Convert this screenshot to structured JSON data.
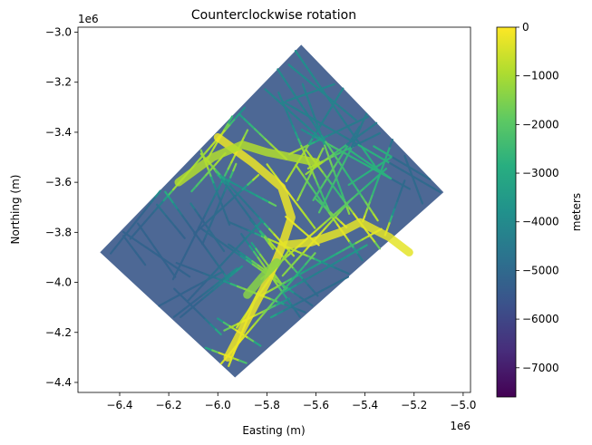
{
  "chart_data": {
    "type": "scatter",
    "title": "Counterclockwise rotation",
    "xlabel": "Easting (m)",
    "ylabel": "Northing (m)",
    "x_offset_label": "1e6",
    "y_offset_label": "1e6",
    "xlim": [
      -6.57,
      -4.97
    ],
    "ylim": [
      -4.44,
      -2.98
    ],
    "x_ticks": [
      -6.4,
      -6.2,
      -6.0,
      -5.8,
      -5.6,
      -5.4,
      -5.2,
      -5.0
    ],
    "x_tick_labels": [
      "−6.4",
      "−6.2",
      "−6.0",
      "−5.8",
      "−5.6",
      "−5.4",
      "−5.2",
      "−5.0"
    ],
    "y_ticks": [
      -3.0,
      -3.2,
      -3.4,
      -3.6,
      -3.8,
      -4.0,
      -4.2,
      -4.4
    ],
    "y_tick_labels": [
      "−3.0",
      "−3.2",
      "−3.4",
      "−3.6",
      "−3.8",
      "−4.0",
      "−4.2",
      "−4.4"
    ],
    "grid": false,
    "colormap": "viridis",
    "survey_polygon": [
      [
        -6.48,
        -3.88
      ],
      [
        -5.66,
        -3.05
      ],
      [
        -5.08,
        -3.64
      ],
      [
        -5.93,
        -4.38
      ]
    ],
    "colorbar": {
      "label": "meters",
      "range": [
        -7600,
        0
      ],
      "ticks": [
        0,
        -1000,
        -2000,
        -3000,
        -4000,
        -5000,
        -6000,
        -7000
      ],
      "tick_labels": [
        "0",
        "−1000",
        "−2000",
        "−3000",
        "−4000",
        "−5000",
        "−6000",
        "−7000"
      ]
    },
    "ridges": [
      {
        "value": -200,
        "points": [
          [
            -6.0,
            -3.42
          ],
          [
            -5.86,
            -3.52
          ],
          [
            -5.74,
            -3.62
          ],
          [
            -5.7,
            -3.74
          ],
          [
            -5.74,
            -3.86
          ],
          [
            -5.8,
            -4.0
          ],
          [
            -5.88,
            -4.15
          ],
          [
            -5.96,
            -4.3
          ]
        ]
      },
      {
        "value": -300,
        "points": [
          [
            -5.72,
            -3.85
          ],
          [
            -5.62,
            -3.84
          ],
          [
            -5.5,
            -3.8
          ],
          [
            -5.42,
            -3.76
          ],
          [
            -5.3,
            -3.82
          ],
          [
            -5.22,
            -3.88
          ]
        ]
      },
      {
        "value": -900,
        "points": [
          [
            -6.16,
            -3.6
          ],
          [
            -6.02,
            -3.5
          ],
          [
            -5.9,
            -3.45
          ],
          [
            -5.8,
            -3.48
          ],
          [
            -5.7,
            -3.5
          ],
          [
            -5.6,
            -3.52
          ]
        ]
      },
      {
        "value": -1400,
        "points": [
          [
            -5.88,
            -4.05
          ],
          [
            -5.82,
            -3.98
          ],
          [
            -5.76,
            -3.92
          ]
        ]
      }
    ]
  }
}
